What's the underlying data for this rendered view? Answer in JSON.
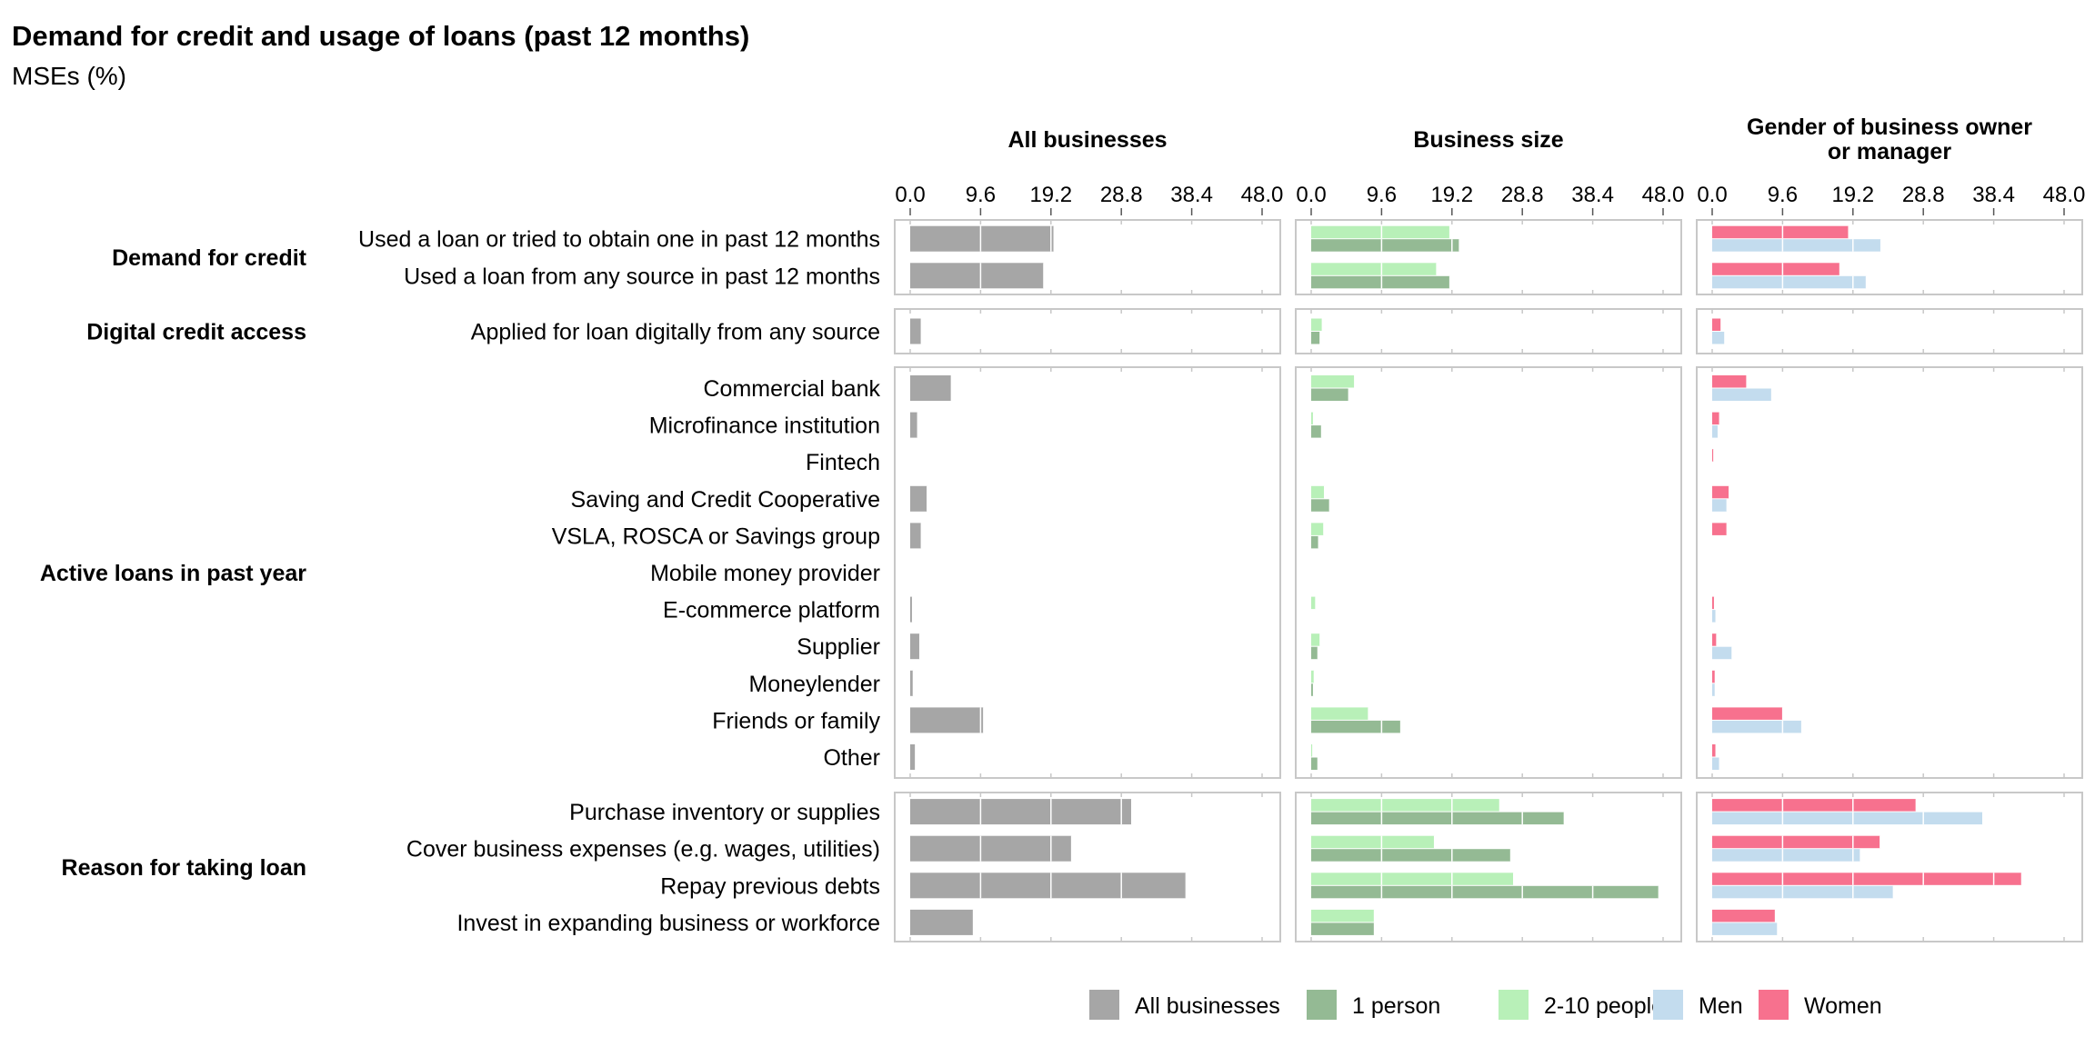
{
  "chart_data": {
    "type": "bar",
    "title": "Demand for credit and usage of loans (past 12 months)",
    "subtitle": "MSEs (%)",
    "xlim": [
      0,
      48.0
    ],
    "x_ticks": [
      "0.0",
      "9.6",
      "19.2",
      "28.8",
      "38.4",
      "48.0"
    ],
    "orientation": "horizontal",
    "facets": [
      {
        "title_lines": [
          "All businesses"
        ],
        "series_keys": [
          "all"
        ]
      },
      {
        "title_lines": [
          "Business size"
        ],
        "series_keys": [
          "size_2_10",
          "size_1"
        ]
      },
      {
        "title_lines": [
          "Gender of business owner",
          "or manager"
        ],
        "series_keys": [
          "women",
          "men"
        ]
      }
    ],
    "groups": [
      {
        "label": "Demand for credit",
        "categories": [
          {
            "label": "Used a loan or tried to obtain one in past 12 months",
            "all": 19.6,
            "size_2_10": 18.9,
            "size_1": 20.2,
            "women": 18.6,
            "men": 23.0
          },
          {
            "label": "Used a loan from any source in past 12 months",
            "all": 18.2,
            "size_2_10": 17.1,
            "size_1": 18.9,
            "women": 17.4,
            "men": 21.0
          }
        ]
      },
      {
        "label": "Digital credit access",
        "categories": [
          {
            "label": "Applied for loan digitally from any source",
            "all": 1.5,
            "size_2_10": 1.5,
            "size_1": 1.2,
            "women": 1.2,
            "men": 1.7
          }
        ]
      },
      {
        "label": "Active loans in past year",
        "categories": [
          {
            "label": "Commercial bank",
            "all": 5.6,
            "size_2_10": 5.9,
            "size_1": 5.1,
            "women": 4.7,
            "men": 8.1
          },
          {
            "label": "Microfinance institution",
            "all": 1.0,
            "size_2_10": 0.3,
            "size_1": 1.4,
            "women": 1.0,
            "men": 0.8
          },
          {
            "label": "Fintech",
            "all": 0.0,
            "size_2_10": 0.0,
            "size_1": 0.0,
            "women": 0.2,
            "men": 0.0
          },
          {
            "label": "Saving and Credit Cooperative",
            "all": 2.3,
            "size_2_10": 1.8,
            "size_1": 2.5,
            "women": 2.3,
            "men": 2.0
          },
          {
            "label": "VSLA, ROSCA or Savings group",
            "all": 1.5,
            "size_2_10": 1.7,
            "size_1": 1.0,
            "women": 2.0,
            "men": 0.0
          },
          {
            "label": "Mobile money provider",
            "all": 0.0,
            "size_2_10": 0.0,
            "size_1": 0.0,
            "women": 0.0,
            "men": 0.0
          },
          {
            "label": "E-commerce platform",
            "all": 0.3,
            "size_2_10": 0.6,
            "size_1": 0.0,
            "women": 0.3,
            "men": 0.5
          },
          {
            "label": "Supplier",
            "all": 1.3,
            "size_2_10": 1.2,
            "size_1": 0.9,
            "women": 0.6,
            "men": 2.7
          },
          {
            "label": "Moneylender",
            "all": 0.4,
            "size_2_10": 0.4,
            "size_1": 0.3,
            "women": 0.4,
            "men": 0.4
          },
          {
            "label": "Friends or family",
            "all": 10.0,
            "size_2_10": 7.8,
            "size_1": 12.2,
            "women": 9.6,
            "men": 12.2
          },
          {
            "label": "Other",
            "all": 0.7,
            "size_2_10": 0.2,
            "size_1": 0.9,
            "women": 0.5,
            "men": 1.0
          }
        ]
      },
      {
        "label": "Reason for taking loan",
        "categories": [
          {
            "label": "Purchase inventory or supplies",
            "all": 30.2,
            "size_2_10": 25.7,
            "size_1": 34.5,
            "women": 27.8,
            "men": 36.9
          },
          {
            "label": "Cover business expenses (e.g. wages, utilities)",
            "all": 22.0,
            "size_2_10": 16.8,
            "size_1": 27.2,
            "women": 22.9,
            "men": 20.2
          },
          {
            "label": "Repay previous debts",
            "all": 37.6,
            "size_2_10": 27.6,
            "size_1": 47.4,
            "women": 42.2,
            "men": 24.7
          },
          {
            "label": "Invest in expanding business or workforce",
            "all": 8.6,
            "size_2_10": 8.6,
            "size_1": 8.6,
            "women": 8.6,
            "men": 8.9
          }
        ]
      }
    ],
    "series": [
      {
        "key": "all",
        "name": "All businesses",
        "color": "#a6a6a6"
      },
      {
        "key": "size_1",
        "name": "1 person",
        "color": "#94ba94"
      },
      {
        "key": "size_2_10",
        "name": "2-10 people",
        "color": "#b8f0b8"
      },
      {
        "key": "men",
        "name": "Men",
        "color": "#c3dcee"
      },
      {
        "key": "women",
        "name": "Women",
        "color": "#f7718e"
      }
    ],
    "legend_position": "bottom",
    "grid": true
  }
}
